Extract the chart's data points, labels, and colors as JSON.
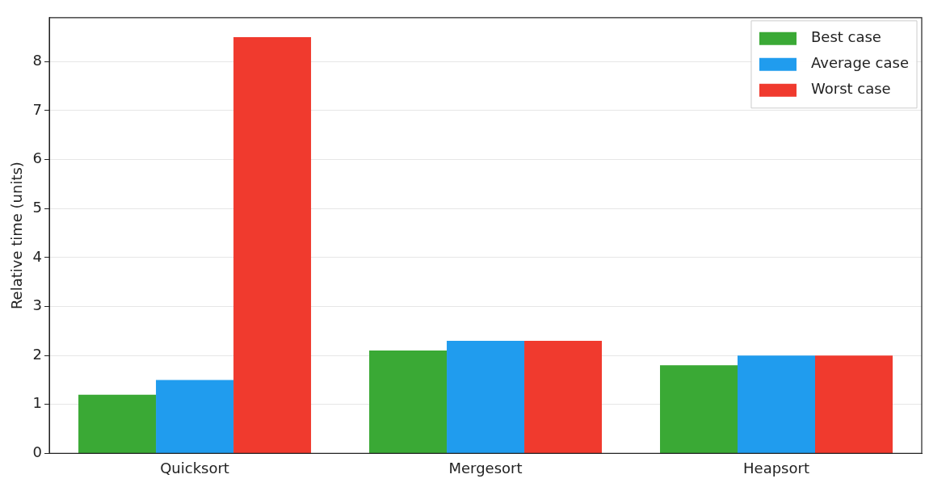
{
  "chart_data": {
    "type": "bar",
    "ylabel": "Relative time (units)",
    "categories": [
      "Quicksort",
      "Mergesort",
      "Heapsort"
    ],
    "series": [
      {
        "name": "Best case",
        "color": "#3aa935",
        "values": [
          1.2,
          2.1,
          1.8
        ]
      },
      {
        "name": "Average case",
        "color": "#209cee",
        "values": [
          1.5,
          2.3,
          2.0
        ]
      },
      {
        "name": "Worst case",
        "color": "#f03a2e",
        "values": [
          8.5,
          2.3,
          2.0
        ]
      }
    ],
    "ylim": [
      0,
      8.9
    ],
    "yticks": [
      0,
      1,
      2,
      3,
      4,
      5,
      6,
      7,
      8
    ],
    "grid": "y",
    "legend": "top right"
  }
}
